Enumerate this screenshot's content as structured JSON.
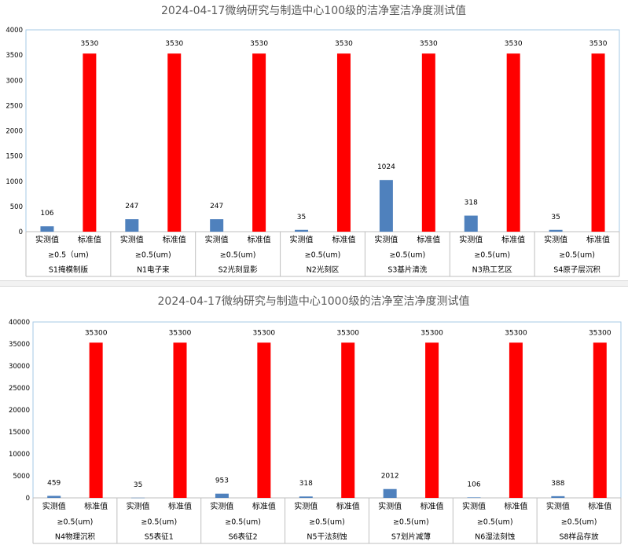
{
  "colors": {
    "measured": "#4f81bd",
    "standard": "#ff0000",
    "axis": "#bfbfbf",
    "frame": "#a6c8e6",
    "text": "#000000",
    "title": "#595959"
  },
  "chart_data": [
    {
      "type": "bar",
      "title": "2024-04-17微纳研究与制造中心100级的洁净室洁净度测试值",
      "ylim": [
        0,
        4000
      ],
      "yticks": [
        0,
        500,
        1000,
        1500,
        2000,
        2500,
        3000,
        3500,
        4000
      ],
      "series_labels": [
        "实测值",
        "标准值"
      ],
      "groups": [
        {
          "size_label": "≥0.5（um)",
          "location": "S1掩模制版",
          "measured": 106,
          "standard": 3530
        },
        {
          "size_label": "≥0.5(um)",
          "location": "N1电子束",
          "measured": 247,
          "standard": 3530
        },
        {
          "size_label": "≥0.5(um)",
          "location": "S2光刻显影",
          "measured": 247,
          "standard": 3530
        },
        {
          "size_label": "≥0.5(um)",
          "location": "N2光刻区",
          "measured": 35,
          "standard": 3530
        },
        {
          "size_label": "≥0.5(um)",
          "location": "S3基片清洗",
          "measured": 1024,
          "standard": 3530
        },
        {
          "size_label": "≥0.5(um)",
          "location": "N3热工艺区",
          "measured": 318,
          "standard": 3530
        },
        {
          "size_label": "≥0.5(um)",
          "location": "S4原子层沉积",
          "measured": 35,
          "standard": 3530
        }
      ]
    },
    {
      "type": "bar",
      "title": "2024-04-17微纳研究与制造中心1000级的洁净室洁净度测试值",
      "ylim": [
        0,
        40000
      ],
      "yticks": [
        0,
        5000,
        10000,
        15000,
        20000,
        25000,
        30000,
        35000,
        40000
      ],
      "series_labels": [
        "实测值",
        "标准值"
      ],
      "groups": [
        {
          "size_label": "≥0.5(um)",
          "location": "N4物理沉积",
          "measured": 459,
          "standard": 35300
        },
        {
          "size_label": "≥0.5(um)",
          "location": "S5表征1",
          "measured": 35,
          "standard": 35300
        },
        {
          "size_label": "≥0.5(um)",
          "location": "S6表征2",
          "measured": 953,
          "standard": 35300
        },
        {
          "size_label": "≥0.5(um)",
          "location": "N5干法刻蚀",
          "measured": 318,
          "standard": 35300
        },
        {
          "size_label": "≥0.5(um)",
          "location": "S7划片减薄",
          "measured": 2012,
          "standard": 35300
        },
        {
          "size_label": "≥0.5(um)",
          "location": "N6湿法刻蚀",
          "measured": 106,
          "standard": 35300
        },
        {
          "size_label": "≥0.5(um)",
          "location": "S8样品存放",
          "measured": 388,
          "standard": 35300
        }
      ]
    }
  ]
}
